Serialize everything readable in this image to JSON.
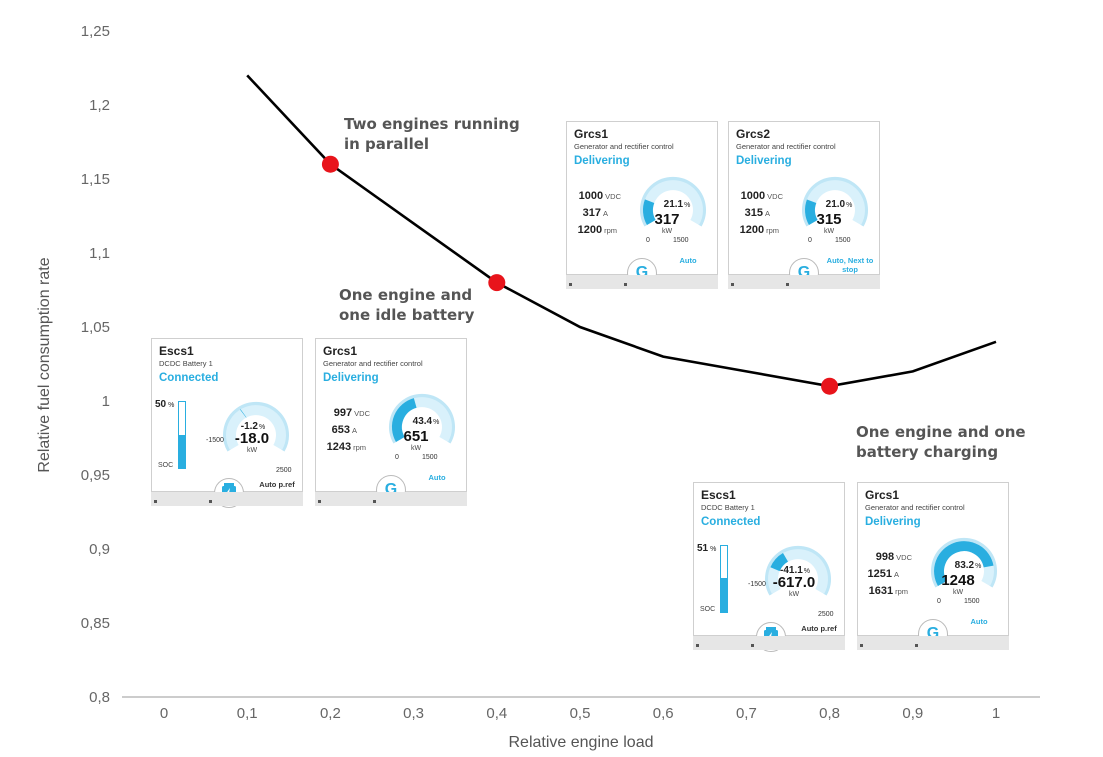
{
  "chart_data": {
    "type": "line",
    "xlabel": "Relative engine load",
    "ylabel": "Relative fuel consumption rate",
    "x_ticks": [
      "0",
      "0,1",
      "0,2",
      "0,3",
      "0,4",
      "0,5",
      "0,6",
      "0,7",
      "0,8",
      "0,9",
      "1"
    ],
    "y_ticks": [
      "0,8",
      "0,85",
      "0,9",
      "0,95",
      "1",
      "1,05",
      "1,1",
      "1,15",
      "1,2",
      "1,25"
    ],
    "xlim": [
      0,
      1
    ],
    "ylim": [
      0.8,
      1.25
    ],
    "grid": false,
    "series": [
      {
        "x": [
          0.1,
          0.2,
          0.3,
          0.4,
          0.5,
          0.6,
          0.7,
          0.8,
          0.9,
          1.0
        ],
        "y": [
          1.22,
          1.16,
          1.12,
          1.08,
          1.05,
          1.03,
          1.02,
          1.01,
          1.02,
          1.04
        ],
        "color": "#000000"
      }
    ],
    "markers": [
      {
        "x": 0.2,
        "y": 1.16,
        "color": "#e8141b"
      },
      {
        "x": 0.4,
        "y": 1.08,
        "color": "#e8141b"
      },
      {
        "x": 0.8,
        "y": 1.01,
        "color": "#e8141b"
      }
    ],
    "annotations": [
      {
        "text": "Two engines running\nin parallel"
      },
      {
        "text": "One engine and\none idle battery"
      },
      {
        "text": "One engine and one\nbattery charging"
      }
    ]
  },
  "panels": {
    "top_grcs1": {
      "title": "Grcs1",
      "subtitle": "Generator and rectifier control",
      "status": "Delivering",
      "voltage": "1000",
      "voltage_unit": "VDC",
      "current": "317",
      "current_unit": "A",
      "speed": "1200",
      "speed_unit": "rpm",
      "percent": "21.1",
      "percent_unit": "%",
      "value": "317",
      "value_unit": "kW",
      "min": "0",
      "max": "1500",
      "mode": "Auto",
      "icon": "G",
      "fraction": 0.211
    },
    "top_grcs2": {
      "title": "Grcs2",
      "subtitle": "Generator and rectifier control",
      "status": "Delivering",
      "voltage": "1000",
      "voltage_unit": "VDC",
      "current": "315",
      "current_unit": "A",
      "speed": "1200",
      "speed_unit": "rpm",
      "percent": "21.0",
      "percent_unit": "%",
      "value": "315",
      "value_unit": "kW",
      "min": "0",
      "max": "1500",
      "mode": "Auto, Next to stop",
      "icon": "G",
      "fraction": 0.21
    },
    "mid_escs1": {
      "title": "Escs1",
      "subtitle": "DCDC Battery 1",
      "status": "Connected",
      "soc": "50",
      "soc_unit": "%",
      "soc_label": "SOC",
      "soc_fraction": 0.5,
      "percent": "-1.2",
      "percent_unit": "%",
      "value": "-18.0",
      "value_unit": "kW",
      "min": "-1500",
      "max": "2500",
      "mode": "Auto p.ref",
      "icon": "battery-bolt-icon",
      "fraction": -0.012
    },
    "mid_grcs1": {
      "title": "Grcs1",
      "subtitle": "Generator and rectifier control",
      "status": "Delivering",
      "voltage": "997",
      "voltage_unit": "VDC",
      "current": "653",
      "current_unit": "A",
      "speed": "1243",
      "speed_unit": "rpm",
      "percent": "43.4",
      "percent_unit": "%",
      "value": "651",
      "value_unit": "kW",
      "min": "0",
      "max": "1500",
      "mode": "Auto",
      "icon": "G",
      "fraction": 0.434
    },
    "low_escs1": {
      "title": "Escs1",
      "subtitle": "DCDC Battery 1",
      "status": "Connected",
      "soc": "51",
      "soc_unit": "%",
      "soc_label": "SOC",
      "soc_fraction": 0.51,
      "percent": "-41.1",
      "percent_unit": "%",
      "value": "-617.0",
      "value_unit": "kW",
      "min": "-1500",
      "max": "2500",
      "mode": "Auto p.ref",
      "icon": "battery-bolt-icon",
      "fraction": -0.411
    },
    "low_grcs1": {
      "title": "Grcs1",
      "subtitle": "Generator and rectifier control",
      "status": "Delivering",
      "voltage": "998",
      "voltage_unit": "VDC",
      "current": "1251",
      "current_unit": "A",
      "speed": "1631",
      "speed_unit": "rpm",
      "percent": "83.2",
      "percent_unit": "%",
      "value": "1248",
      "value_unit": "kW",
      "min": "0",
      "max": "1500",
      "mode": "Auto",
      "icon": "G",
      "fraction": 0.832
    }
  },
  "colors": {
    "accent": "#29aee0",
    "marker": "#e8141b",
    "curve": "#000000"
  }
}
